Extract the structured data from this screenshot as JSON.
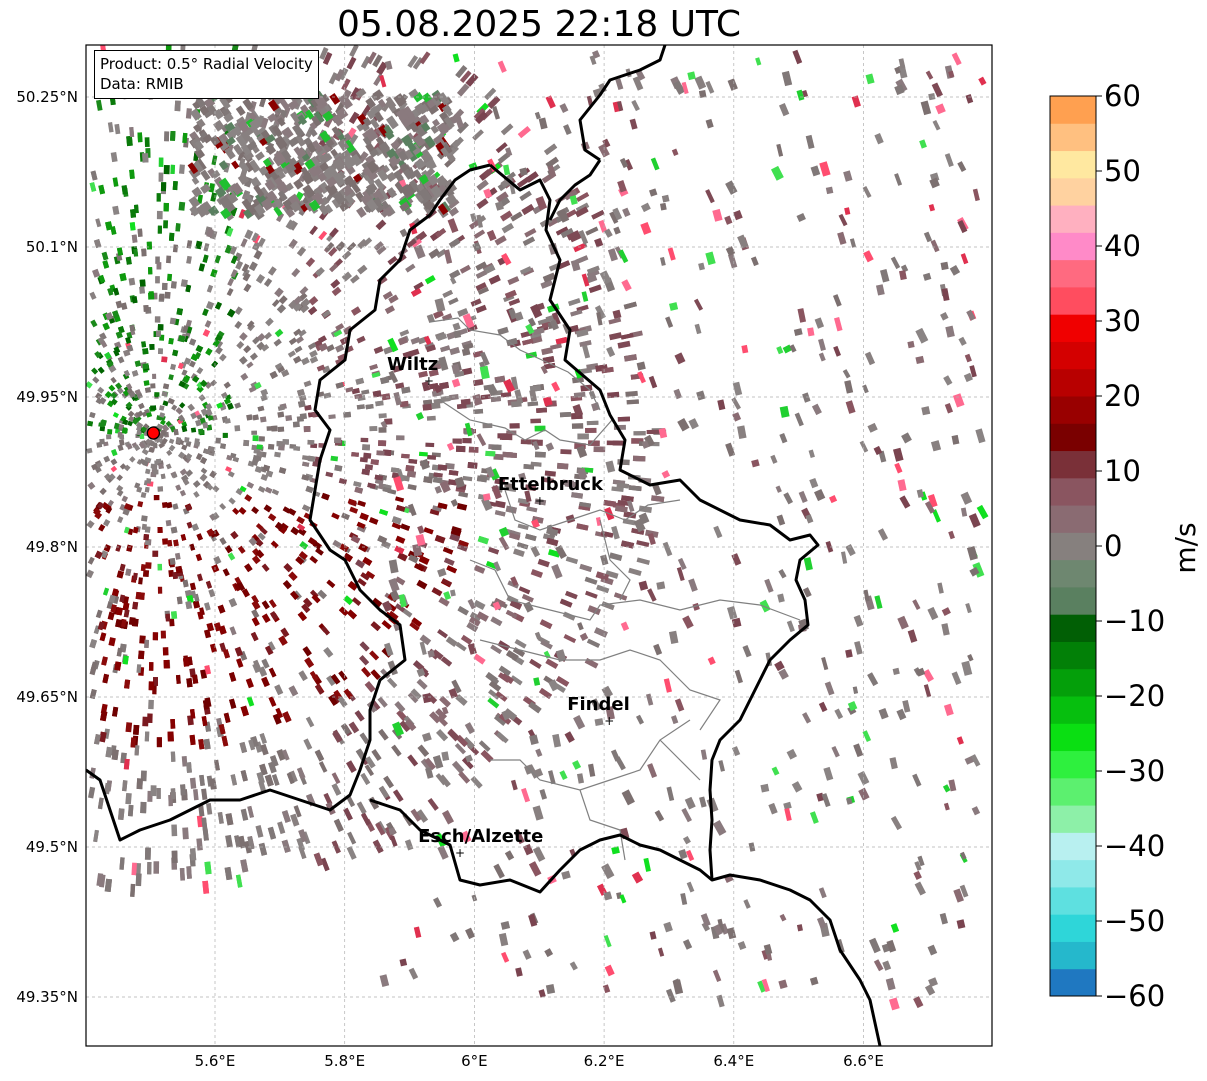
{
  "title": "05.08.2025 22:18 UTC",
  "info": {
    "product": "Product: 0.5° Radial Velocity",
    "source": "Data: RMIB"
  },
  "axes": {
    "lat_ticks": [
      "50.25°N",
      "50.1°N",
      "49.95°N",
      "49.8°N",
      "49.65°N",
      "49.5°N",
      "49.35°N"
    ],
    "lon_ticks": [
      "5.6°E",
      "5.8°E",
      "6°E",
      "6.2°E",
      "6.4°E",
      "6.6°E"
    ],
    "gridlines": true
  },
  "cities": [
    {
      "name": "Wiltz",
      "lat": 49.967,
      "lon": 5.933
    },
    {
      "name": "Ettelbruck",
      "lat": 49.847,
      "lon": 6.104
    },
    {
      "name": "Findel",
      "lat": 49.627,
      "lon": 6.211
    },
    {
      "name": "Esch/Alzette",
      "lat": 49.495,
      "lon": 5.981
    }
  ],
  "radar_site": {
    "lat": 49.914,
    "lon": 5.505
  },
  "colorbar": {
    "label": "m/s",
    "ticks": [
      "60",
      "50",
      "40",
      "30",
      "20",
      "10",
      "0",
      "−10",
      "−20",
      "−30",
      "−40",
      "−50",
      "−60"
    ],
    "range": [
      -60,
      60
    ],
    "colors": [
      "#1f78c1",
      "#25b8cc",
      "#2ed6d9",
      "#5ee0e0",
      "#8fe9e9",
      "#b8f0f0",
      "#8df0a8",
      "#5cf06f",
      "#2ef03e",
      "#0adf12",
      "#06bf0e",
      "#049f0a",
      "#028007",
      "#015f05",
      "#5a8060",
      "#6e8770",
      "#86807e",
      "#8a6b72",
      "#8a5560",
      "#7a3038",
      "#7a0000",
      "#990000",
      "#b80000",
      "#d40000",
      "#f00000",
      "#ff4d5f",
      "#ff6a80",
      "#ff8ac8",
      "#ffb0c0",
      "#ffd2a0",
      "#ffe8a0",
      "#ffc080",
      "#ffa050"
    ]
  },
  "colors": {
    "border_national": "#000000",
    "border_canton": "#808080",
    "radar_marker": "#ff0000"
  }
}
